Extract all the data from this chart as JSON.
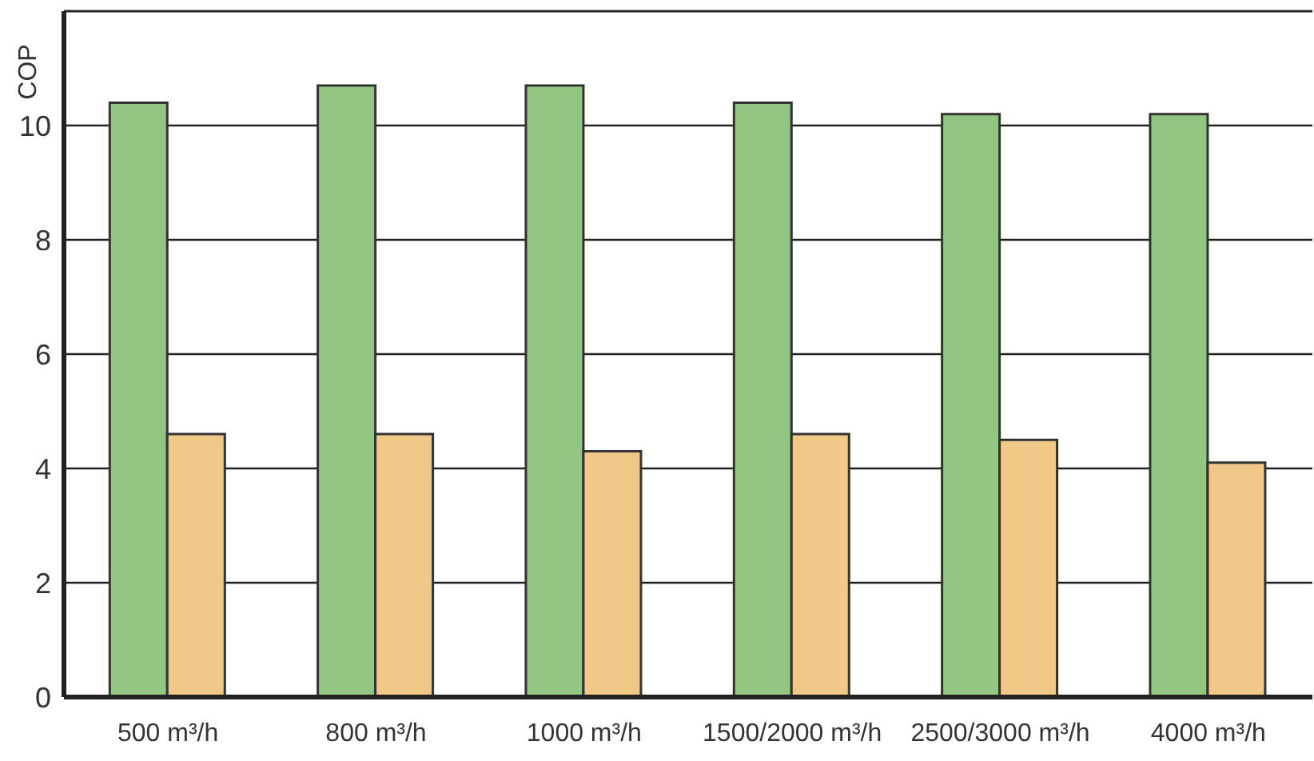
{
  "chart_data": {
    "type": "bar",
    "ylabel": "COP",
    "categories": [
      "500 m³/h",
      "800 m³/h",
      "1000 m³/h",
      "1500/2000 m³/h",
      "2500/3000 m³/h",
      "4000 m³/h"
    ],
    "series": [
      {
        "color": "#93c683",
        "values": [
          10.4,
          10.7,
          10.7,
          10.4,
          10.2,
          10.2
        ]
      },
      {
        "color": "#f0c888",
        "values": [
          4.6,
          4.6,
          4.3,
          4.6,
          4.5,
          4.1
        ]
      }
    ],
    "ylim": [
      0,
      12
    ],
    "yticks": [
      0,
      2,
      4,
      6,
      8,
      10
    ],
    "grid": "y",
    "legend": false
  }
}
